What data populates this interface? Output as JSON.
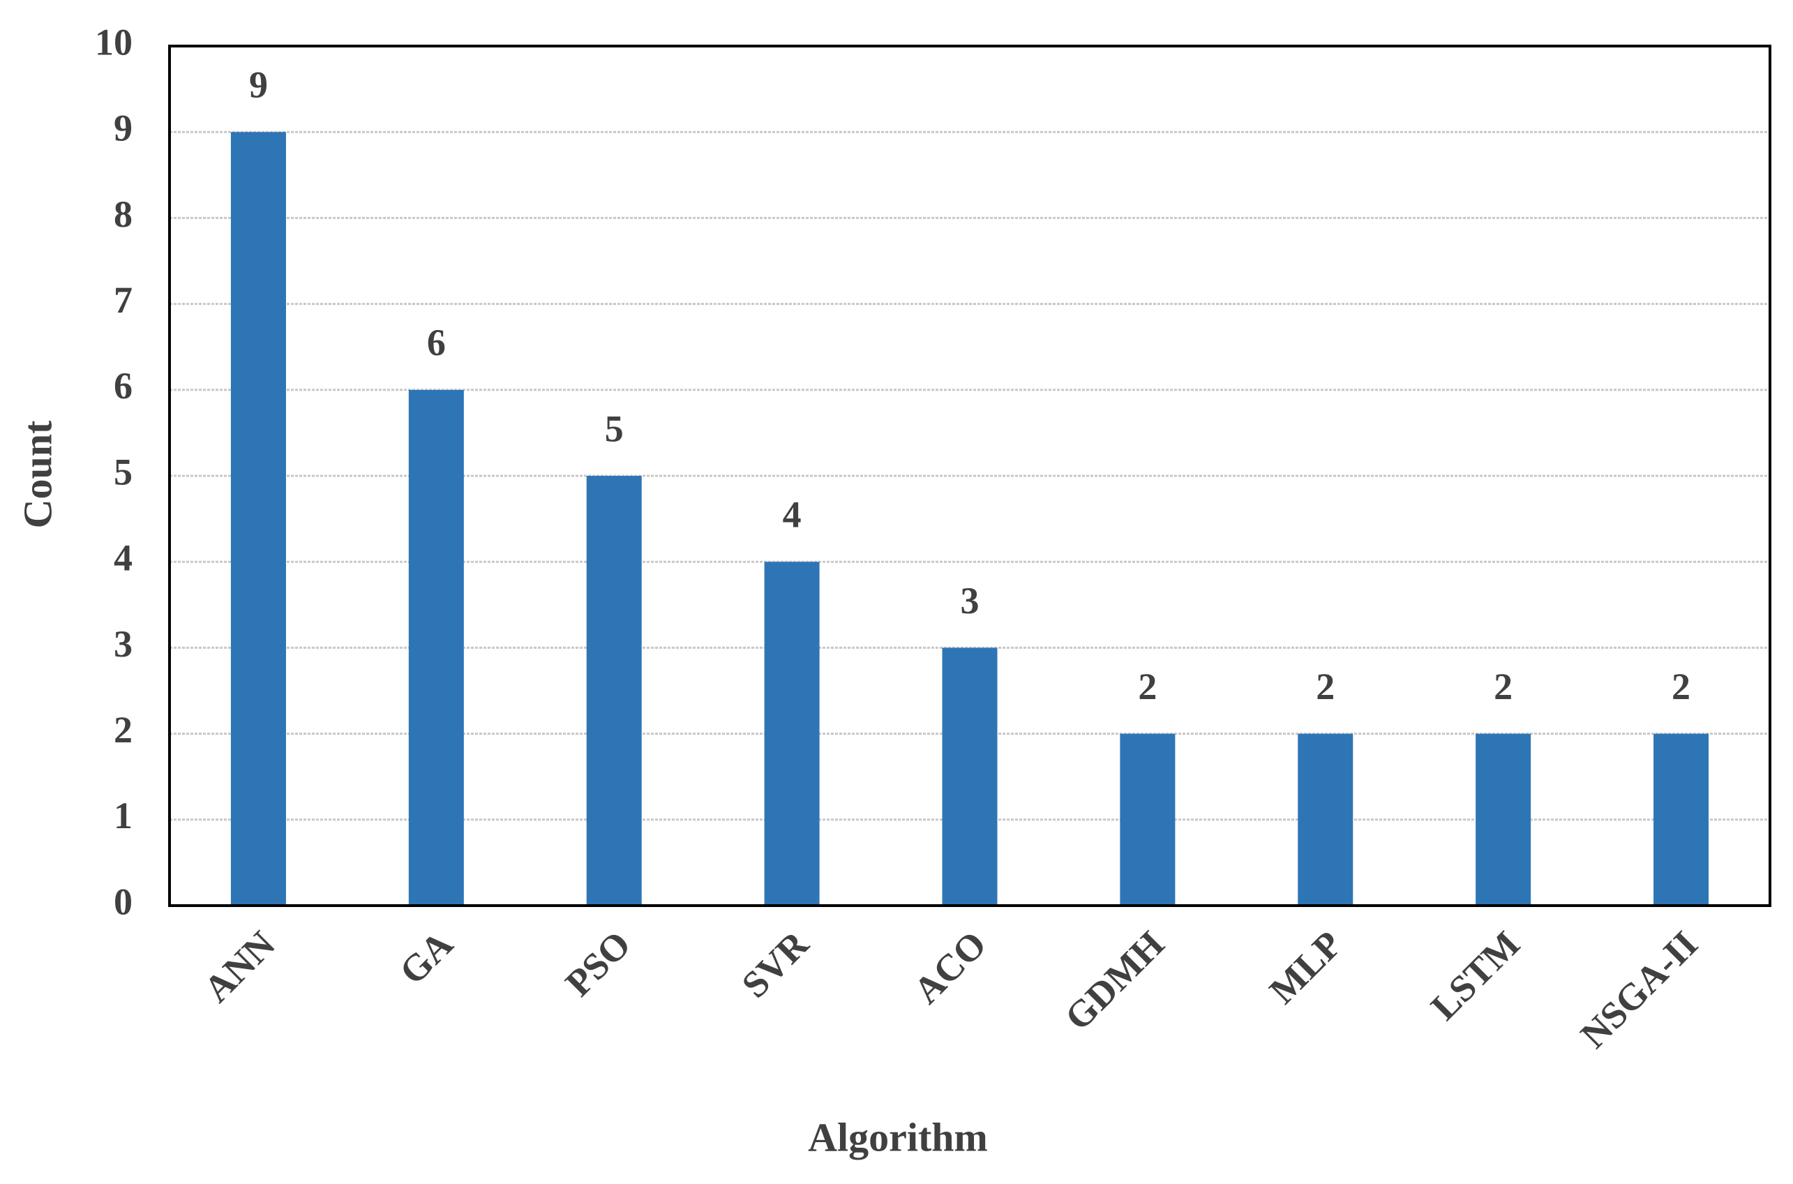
{
  "chart_data": {
    "type": "bar",
    "x_label": "Algorithm",
    "y_label": "Count",
    "categories": [
      "ANN",
      "GA",
      "PSO",
      "SVR",
      "ACO",
      "GDMH",
      "MLP",
      "LSTM",
      "NSGA-II"
    ],
    "values": [
      9,
      6,
      5,
      4,
      3,
      2,
      2,
      2,
      2
    ],
    "color": "#2e75b6",
    "ylim": [
      0,
      10
    ],
    "yticks": [
      0,
      1,
      2,
      3,
      4,
      5,
      6,
      7,
      8,
      9,
      10
    ],
    "grid": true,
    "data_labels": true
  }
}
